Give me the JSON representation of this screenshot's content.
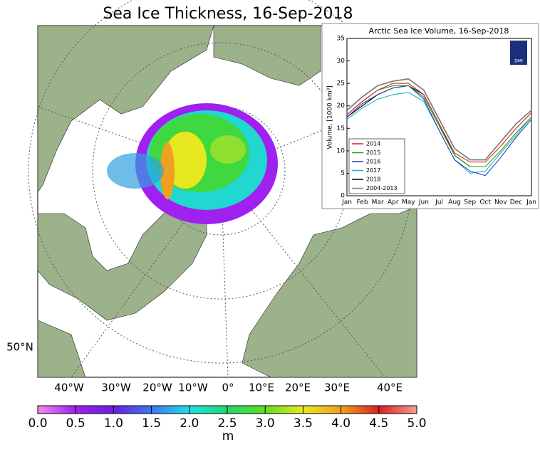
{
  "title": "Sea Ice Thickness, 16-Sep-2018",
  "map": {
    "lon_labels": [
      "40°W",
      "30°W",
      "20°W",
      "10°W",
      "0°",
      "10°E",
      "20°E",
      "30°E",
      "40°E"
    ],
    "lat_label": "50°N",
    "land_color": "#9cb28a"
  },
  "colorbar": {
    "clim": [
      0,
      5
    ],
    "ticks": [
      {
        "value": 0,
        "label": "0.0"
      },
      0.5,
      {
        "value": 1,
        "label": "1.0"
      },
      1.5,
      {
        "value": 2,
        "label": "2.0"
      },
      2.5,
      {
        "value": 3,
        "label": "3.0"
      },
      3.5,
      {
        "value": 4,
        "label": "4.0"
      },
      4.5,
      {
        "value": 5,
        "label": "5.0"
      }
    ],
    "unit": "m",
    "colors": [
      "#f08cf0",
      "#a020f0",
      "#6a1fe0",
      "#3c78f0",
      "#20e0e0",
      "#20d870",
      "#60e020",
      "#e8e820",
      "#f0a020",
      "#e02020",
      "#f0a090"
    ]
  },
  "chart_data": {
    "type": "line",
    "title": "Arctic Sea Ice Volume, 16-Sep-2018",
    "y_label": "Volume, [1000 km³]",
    "logo_text": "DMI",
    "categories": [
      "Jan",
      "Feb",
      "Mar",
      "Apr",
      "May",
      "Jun",
      "Jul",
      "Aug",
      "Sep",
      "Oct",
      "Nov",
      "Dec",
      "Jan"
    ],
    "ylim": [
      0,
      35
    ],
    "yticks": [
      0,
      5,
      10,
      15,
      20,
      25,
      30,
      35
    ],
    "legend": "lower-left",
    "series": [
      {
        "name": "2014",
        "color": "#e02020",
        "values": [
          18,
          21,
          23.5,
          25,
          25,
          22.5,
          16,
          9.5,
          7.5,
          7.5,
          11,
          15,
          18.5
        ]
      },
      {
        "name": "2015",
        "color": "#20a020",
        "values": [
          18,
          21,
          23.5,
          24.5,
          24.5,
          22,
          15.5,
          9,
          6.5,
          6.5,
          10,
          14,
          17.5
        ]
      },
      {
        "name": "2016",
        "color": "#2040c0",
        "values": [
          17.5,
          20.5,
          22.5,
          24,
          24.5,
          21.5,
          14.5,
          8,
          5.5,
          4.5,
          8.5,
          13,
          17
        ]
      },
      {
        "name": "2017",
        "color": "#20b0c0",
        "values": [
          17,
          19.5,
          21.5,
          22.5,
          23,
          21,
          14.5,
          8,
          5,
          5.5,
          9.5,
          13.5,
          17.5
        ]
      },
      {
        "name": "2018",
        "color": "#000000",
        "values": [
          17.5,
          20,
          22.5,
          24,
          24.5,
          22.5,
          16,
          9,
          6.5,
          null,
          null,
          null,
          null
        ]
      },
      {
        "name": "2004-2013",
        "color": "#808080",
        "values": [
          19,
          22,
          24.5,
          25.5,
          26,
          23.5,
          17,
          10.5,
          8,
          8,
          12,
          16,
          19
        ]
      }
    ]
  }
}
